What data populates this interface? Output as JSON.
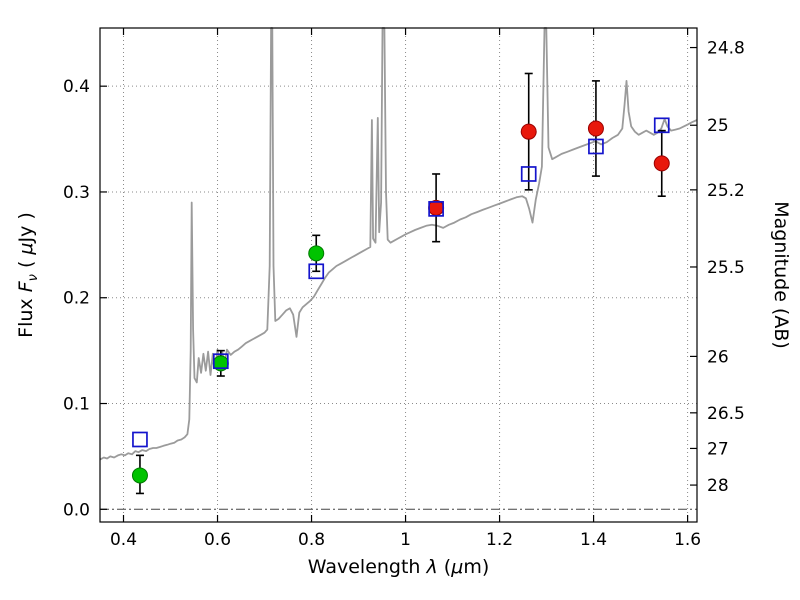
{
  "chart_data": {
    "type": "line+scatter",
    "title": "",
    "xlabel_parts": [
      {
        "t": "Wavelength  ",
        "italic": false
      },
      {
        "t": "λ",
        "italic": true
      },
      {
        "t": " (",
        "italic": false
      },
      {
        "t": "μ",
        "italic": true
      },
      {
        "t": "m)",
        "italic": false
      }
    ],
    "ylabel_left_parts": [
      {
        "t": "Flux  ",
        "italic": false
      },
      {
        "t": "F",
        "italic": true
      },
      {
        "t": "ν",
        "italic": true,
        "sub": true
      },
      {
        "t": "  ( ",
        "italic": false
      },
      {
        "t": "μ",
        "italic": true
      },
      {
        "t": "Jy )",
        "italic": false
      }
    ],
    "ylabel_right": "Magnitude (AB)",
    "xlim": [
      0.35,
      1.62
    ],
    "ylim": [
      -0.012,
      0.455
    ],
    "x_ticks": [
      0.4,
      0.6,
      0.8,
      1.0,
      1.2,
      1.4,
      1.6
    ],
    "x_tick_labels": [
      "0.4",
      "0.6",
      "0.8",
      "1",
      "1.2",
      "1.4",
      "1.6"
    ],
    "y_ticks_left": [
      0.0,
      0.1,
      0.2,
      0.3,
      0.4
    ],
    "y_tick_labels_left": [
      "0.0",
      "0.1",
      "0.2",
      "0.3",
      "0.4"
    ],
    "y_ticks_right_mag": [
      24.8,
      25,
      25.2,
      25.5,
      26,
      26.5,
      27,
      28
    ],
    "y_tick_labels_right": [
      "24.8",
      "25",
      "25.2",
      "25.5",
      "26",
      "26.5",
      "27",
      "28"
    ],
    "mag_zeropoint": 23.9,
    "grid": "dotted",
    "zero_line": "dashdot",
    "colors": {
      "spectrum": "#9b9b9b",
      "green": "#00c300",
      "green_edge": "#007a00",
      "red": "#e8180c",
      "red_edge": "#990000",
      "blue": "#1414cc",
      "errorbar": "#000000",
      "grid": "#8a8a8a",
      "frame": "#000000",
      "background": "#ffffff"
    },
    "series": [
      {
        "name": "model-spectrum",
        "type": "line",
        "points": [
          [
            0.35,
            0.047
          ],
          [
            0.358,
            0.049
          ],
          [
            0.365,
            0.048
          ],
          [
            0.372,
            0.05
          ],
          [
            0.38,
            0.049
          ],
          [
            0.388,
            0.051
          ],
          [
            0.395,
            0.052
          ],
          [
            0.403,
            0.051
          ],
          [
            0.41,
            0.053
          ],
          [
            0.418,
            0.052
          ],
          [
            0.425,
            0.055
          ],
          [
            0.432,
            0.054
          ],
          [
            0.44,
            0.056
          ],
          [
            0.448,
            0.055
          ],
          [
            0.455,
            0.057
          ],
          [
            0.463,
            0.058
          ],
          [
            0.47,
            0.058
          ],
          [
            0.478,
            0.059
          ],
          [
            0.485,
            0.06
          ],
          [
            0.493,
            0.061
          ],
          [
            0.5,
            0.062
          ],
          [
            0.508,
            0.063
          ],
          [
            0.515,
            0.065
          ],
          [
            0.523,
            0.066
          ],
          [
            0.53,
            0.068
          ],
          [
            0.536,
            0.071
          ],
          [
            0.54,
            0.085
          ],
          [
            0.543,
            0.15
          ],
          [
            0.545,
            0.29
          ],
          [
            0.548,
            0.17
          ],
          [
            0.551,
            0.124
          ],
          [
            0.556,
            0.12
          ],
          [
            0.56,
            0.143
          ],
          [
            0.565,
            0.129
          ],
          [
            0.57,
            0.147
          ],
          [
            0.575,
            0.131
          ],
          [
            0.58,
            0.149
          ],
          [
            0.585,
            0.127
          ],
          [
            0.59,
            0.147
          ],
          [
            0.595,
            0.134
          ],
          [
            0.6,
            0.151
          ],
          [
            0.605,
            0.139
          ],
          [
            0.61,
            0.149
          ],
          [
            0.615,
            0.137
          ],
          [
            0.62,
            0.151
          ],
          [
            0.628,
            0.146
          ],
          [
            0.636,
            0.149
          ],
          [
            0.644,
            0.151
          ],
          [
            0.652,
            0.154
          ],
          [
            0.66,
            0.157
          ],
          [
            0.668,
            0.159
          ],
          [
            0.676,
            0.161
          ],
          [
            0.684,
            0.163
          ],
          [
            0.692,
            0.165
          ],
          [
            0.7,
            0.167
          ],
          [
            0.706,
            0.17
          ],
          [
            0.711,
            0.23
          ],
          [
            0.714,
            0.455
          ],
          [
            0.7165,
            0.455
          ],
          [
            0.719,
            0.23
          ],
          [
            0.723,
            0.178
          ],
          [
            0.73,
            0.18
          ],
          [
            0.738,
            0.184
          ],
          [
            0.746,
            0.188
          ],
          [
            0.754,
            0.19
          ],
          [
            0.761,
            0.184
          ],
          [
            0.768,
            0.163
          ],
          [
            0.774,
            0.186
          ],
          [
            0.781,
            0.191
          ],
          [
            0.789,
            0.194
          ],
          [
            0.797,
            0.197
          ],
          [
            0.805,
            0.201
          ],
          [
            0.813,
            0.207
          ],
          [
            0.821,
            0.213
          ],
          [
            0.829,
            0.219
          ],
          [
            0.837,
            0.224
          ],
          [
            0.845,
            0.227
          ],
          [
            0.853,
            0.23
          ],
          [
            0.861,
            0.232
          ],
          [
            0.869,
            0.234
          ],
          [
            0.877,
            0.236
          ],
          [
            0.885,
            0.238
          ],
          [
            0.893,
            0.24
          ],
          [
            0.901,
            0.242
          ],
          [
            0.909,
            0.244
          ],
          [
            0.917,
            0.246
          ],
          [
            0.925,
            0.248
          ],
          [
            0.9285,
            0.368
          ],
          [
            0.931,
            0.256
          ],
          [
            0.936,
            0.252
          ],
          [
            0.941,
            0.37
          ],
          [
            0.944,
            0.262
          ],
          [
            0.948,
            0.29
          ],
          [
            0.951,
            0.455
          ],
          [
            0.955,
            0.455
          ],
          [
            0.9585,
            0.3
          ],
          [
            0.962,
            0.255
          ],
          [
            0.968,
            0.252
          ],
          [
            0.976,
            0.254
          ],
          [
            0.984,
            0.256
          ],
          [
            0.992,
            0.258
          ],
          [
            1.0,
            0.26
          ],
          [
            1.01,
            0.262
          ],
          [
            1.02,
            0.264
          ],
          [
            1.032,
            0.266
          ],
          [
            1.044,
            0.268
          ],
          [
            1.056,
            0.269
          ],
          [
            1.068,
            0.268
          ],
          [
            1.08,
            0.266
          ],
          [
            1.092,
            0.269
          ],
          [
            1.104,
            0.271
          ],
          [
            1.116,
            0.274
          ],
          [
            1.128,
            0.276
          ],
          [
            1.14,
            0.279
          ],
          [
            1.152,
            0.281
          ],
          [
            1.164,
            0.283
          ],
          [
            1.176,
            0.285
          ],
          [
            1.188,
            0.287
          ],
          [
            1.2,
            0.289
          ],
          [
            1.212,
            0.291
          ],
          [
            1.224,
            0.293
          ],
          [
            1.236,
            0.295
          ],
          [
            1.248,
            0.296
          ],
          [
            1.256,
            0.294
          ],
          [
            1.263,
            0.284
          ],
          [
            1.27,
            0.271
          ],
          [
            1.277,
            0.293
          ],
          [
            1.284,
            0.308
          ],
          [
            1.29,
            0.324
          ],
          [
            1.2955,
            0.455
          ],
          [
            1.2995,
            0.455
          ],
          [
            1.304,
            0.342
          ],
          [
            1.312,
            0.331
          ],
          [
            1.32,
            0.333
          ],
          [
            1.332,
            0.336
          ],
          [
            1.344,
            0.338
          ],
          [
            1.356,
            0.34
          ],
          [
            1.368,
            0.342
          ],
          [
            1.38,
            0.344
          ],
          [
            1.392,
            0.346
          ],
          [
            1.404,
            0.348
          ],
          [
            1.416,
            0.345
          ],
          [
            1.428,
            0.347
          ],
          [
            1.44,
            0.351
          ],
          [
            1.452,
            0.354
          ],
          [
            1.461,
            0.36
          ],
          [
            1.466,
            0.383
          ],
          [
            1.47,
            0.405
          ],
          [
            1.4745,
            0.376
          ],
          [
            1.48,
            0.362
          ],
          [
            1.488,
            0.357
          ],
          [
            1.496,
            0.354
          ],
          [
            1.504,
            0.356
          ],
          [
            1.512,
            0.358
          ],
          [
            1.52,
            0.356
          ],
          [
            1.528,
            0.354
          ],
          [
            1.536,
            0.356
          ],
          [
            1.544,
            0.36
          ],
          [
            1.551,
            0.369
          ],
          [
            1.557,
            0.362
          ],
          [
            1.565,
            0.358
          ],
          [
            1.574,
            0.359
          ],
          [
            1.583,
            0.36
          ],
          [
            1.592,
            0.362
          ],
          [
            1.601,
            0.364
          ],
          [
            1.61,
            0.366
          ],
          [
            1.62,
            0.368
          ]
        ]
      },
      {
        "name": "observed-photometry-green",
        "type": "scatter",
        "marker": "filled-circle",
        "points": [
          {
            "x": 0.435,
            "y": 0.032,
            "err_lo": 0.017,
            "err_hi": 0.019
          },
          {
            "x": 0.607,
            "y": 0.138,
            "err_lo": 0.012,
            "err_hi": 0.012
          },
          {
            "x": 0.81,
            "y": 0.242,
            "err_lo": 0.017,
            "err_hi": 0.017
          }
        ]
      },
      {
        "name": "observed-photometry-red",
        "type": "scatter",
        "marker": "filled-circle",
        "points": [
          {
            "x": 1.065,
            "y": 0.285,
            "err_lo": 0.032,
            "err_hi": 0.032
          },
          {
            "x": 1.262,
            "y": 0.357,
            "err_lo": 0.055,
            "err_hi": 0.055
          },
          {
            "x": 1.405,
            "y": 0.36,
            "err_lo": 0.045,
            "err_hi": 0.045
          },
          {
            "x": 1.545,
            "y": 0.327,
            "err_lo": 0.031,
            "err_hi": 0.031
          }
        ]
      },
      {
        "name": "model-photometry-squares",
        "type": "scatter",
        "marker": "open-square",
        "points": [
          {
            "x": 0.435,
            "y": 0.066
          },
          {
            "x": 0.607,
            "y": 0.14
          },
          {
            "x": 0.81,
            "y": 0.225
          },
          {
            "x": 1.065,
            "y": 0.284
          },
          {
            "x": 1.262,
            "y": 0.317
          },
          {
            "x": 1.405,
            "y": 0.343
          },
          {
            "x": 1.545,
            "y": 0.363
          }
        ]
      }
    ]
  }
}
